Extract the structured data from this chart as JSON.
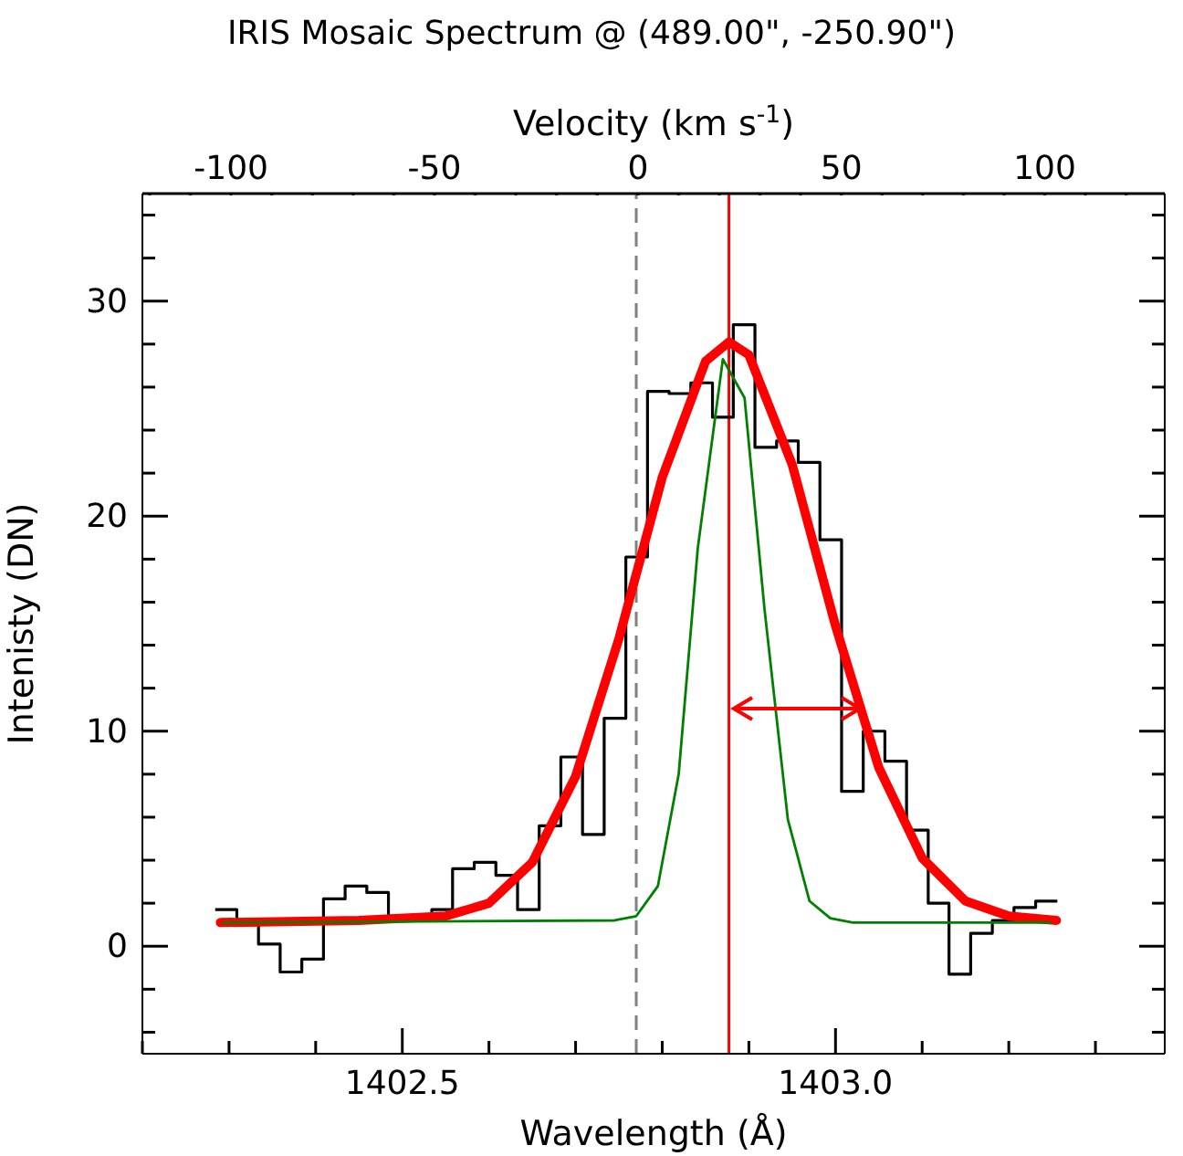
{
  "chart_data": {
    "type": "histogram",
    "title": "IRIS Mosaic Spectrum @ (489.00\", -250.90\")",
    "xlabel": "Wavelength (Å)",
    "ylabel": "Intenisty (DN)",
    "x2label": "Velocity (km s$^{-1}$)",
    "xlim": [
      1402.2,
      1403.38
    ],
    "xticks": [
      {
        "value": 1402.2,
        "label": null
      },
      {
        "value": 1402.3,
        "label": null
      },
      {
        "value": 1402.4,
        "label": null
      },
      1402.5,
      {
        "value": 1402.6,
        "label": null
      },
      {
        "value": 1402.7,
        "label": null
      },
      {
        "value": 1402.8,
        "label": null
      },
      {
        "value": 1402.9,
        "label": null
      },
      {
        "value": 1403.0,
        "label": "1403.0"
      },
      {
        "value": 1403.1,
        "label": null
      },
      {
        "value": 1403.2,
        "label": null
      },
      {
        "value": 1403.3,
        "label": null
      }
    ],
    "x2lim": [
      -121.8,
      129.5
    ],
    "x2ticks": [
      {
        "value": -120,
        "label": null
      },
      {
        "value": -110,
        "label": null
      },
      -100,
      {
        "value": -90,
        "label": null
      },
      {
        "value": -80,
        "label": null
      },
      {
        "value": -70,
        "label": null
      },
      {
        "value": -60,
        "label": null
      },
      -50,
      {
        "value": -40,
        "label": null
      },
      {
        "value": -30,
        "label": null
      },
      {
        "value": -20,
        "label": null
      },
      {
        "value": -10,
        "label": null
      },
      0,
      {
        "value": 10,
        "label": null
      },
      {
        "value": 20,
        "label": null
      },
      {
        "value": 30,
        "label": null
      },
      {
        "value": 40,
        "label": null
      },
      50,
      {
        "value": 60,
        "label": null
      },
      {
        "value": 70,
        "label": null
      },
      {
        "value": 80,
        "label": null
      },
      {
        "value": 90,
        "label": null
      },
      100,
      {
        "value": 110,
        "label": null
      },
      {
        "value": 120,
        "label": null
      }
    ],
    "ylim": [
      -5,
      35
    ],
    "yticks": [
      {
        "value": -4,
        "label": null
      },
      {
        "value": -2,
        "label": null
      },
      0,
      {
        "value": 2,
        "label": null
      },
      {
        "value": 4,
        "label": null
      },
      {
        "value": 6,
        "label": null
      },
      {
        "value": 8,
        "label": null
      },
      10,
      {
        "value": 12,
        "label": null
      },
      {
        "value": 14,
        "label": null
      },
      {
        "value": 16,
        "label": null
      },
      {
        "value": 18,
        "label": null
      },
      20,
      {
        "value": 22,
        "label": null
      },
      {
        "value": 24,
        "label": null
      },
      {
        "value": 26,
        "label": null
      },
      {
        "value": 28,
        "label": null
      },
      30,
      {
        "value": 32,
        "label": null
      },
      {
        "value": 34,
        "label": null
      }
    ],
    "ref_lines": [
      {
        "axis": "x",
        "value": 1402.77,
        "color": "#808080",
        "line_style": "dashed"
      },
      {
        "axis": "x",
        "value": 1402.877,
        "color": "#ff0000",
        "line_style": "solid"
      }
    ],
    "series": [
      {
        "color": "#000000",
        "bins": [
          1402.284,
          1402.309,
          1402.334,
          1402.359,
          1402.384,
          1402.409,
          1402.434,
          1402.459,
          1402.484,
          1402.509,
          1402.534,
          1402.558,
          1402.583,
          1402.608,
          1402.633,
          1402.658,
          1402.683,
          1402.708,
          1402.733,
          1402.758,
          1402.783,
          1402.808,
          1402.833,
          1402.858,
          1402.882,
          1402.907,
          1402.932,
          1402.957,
          1402.982,
          1403.007,
          1403.032,
          1403.057,
          1403.082,
          1403.107,
          1403.131,
          1403.156,
          1403.181,
          1403.206,
          1403.231,
          1403.256
        ],
        "values": [
          1.7,
          1.0,
          0.1,
          -1.2,
          -0.6,
          2.2,
          2.8,
          2.5,
          1.4,
          1.2,
          1.7,
          3.6,
          3.9,
          3.3,
          1.7,
          5.6,
          8.8,
          5.2,
          10.6,
          18.1,
          25.8,
          25.7,
          26.2,
          24.6,
          28.9,
          23.2,
          23.5,
          22.5,
          18.9,
          7.2,
          10.0,
          8.6,
          5.4,
          2.0,
          -1.3,
          0.6,
          1.2,
          1.8,
          2.1
        ]
      },
      {
        "type": "line",
        "color": "#ff0000",
        "x": [
          1402.29,
          1402.45,
          1402.55,
          1402.6,
          1402.65,
          1402.7,
          1402.75,
          1402.8,
          1402.85,
          1402.877,
          1402.9,
          1402.95,
          1403.0,
          1403.05,
          1403.1,
          1403.15,
          1403.2,
          1403.255
        ],
        "values": [
          1.1,
          1.2,
          1.4,
          2.0,
          3.9,
          7.9,
          14.3,
          21.8,
          27.2,
          28.1,
          27.5,
          22.4,
          14.9,
          8.3,
          4.1,
          2.1,
          1.4,
          1.2
        ]
      },
      {
        "type": "line",
        "color": "#008000",
        "x": [
          1402.293,
          1402.745,
          1402.77,
          1402.795,
          1402.819,
          1402.841,
          1402.87,
          1402.895,
          1402.918,
          1402.945,
          1402.97,
          1402.994,
          1403.02,
          1403.248
        ],
        "values": [
          1.1,
          1.2,
          1.4,
          2.8,
          8.0,
          18.5,
          27.3,
          25.5,
          15.7,
          5.9,
          2.1,
          1.3,
          1.1,
          1.1
        ]
      }
    ]
  }
}
